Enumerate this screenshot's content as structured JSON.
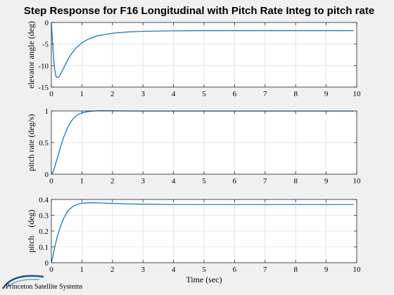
{
  "figure": {
    "title": "Step Response for F16 Longitudinal with Pitch Rate Integ to pitch rate",
    "logo_text": "Princeton Satellite Systems",
    "background": "#f0f0f0",
    "line_color": "#0072bd"
  },
  "chart_data": [
    {
      "type": "line",
      "ylabel": "elevator angle (deg)",
      "xlabel": "",
      "xlim": [
        0,
        10
      ],
      "ylim": [
        -15,
        0
      ],
      "xticks": [
        0,
        1,
        2,
        3,
        4,
        5,
        6,
        7,
        8,
        9,
        10
      ],
      "yticks": [
        -15,
        -10,
        -5,
        0
      ],
      "grid": true,
      "series": [
        {
          "x": [
            0,
            0.05,
            0.1,
            0.15,
            0.2,
            0.25,
            0.3,
            0.4,
            0.5,
            0.6,
            0.7,
            0.8,
            1.0,
            1.2,
            1.5,
            2.0,
            2.5,
            3.0,
            4.0,
            5.0,
            6.0,
            7.0,
            8.0,
            9.0,
            9.9
          ],
          "y": [
            0,
            -6,
            -10.5,
            -12.5,
            -12.8,
            -12.6,
            -12.0,
            -10.6,
            -9.2,
            -7.9,
            -6.9,
            -6.0,
            -4.7,
            -3.9,
            -3.1,
            -2.5,
            -2.2,
            -2.05,
            -1.95,
            -1.9,
            -1.9,
            -1.9,
            -1.9,
            -1.9,
            -1.9
          ]
        }
      ]
    },
    {
      "type": "line",
      "ylabel": "pitch rate (deg/s)",
      "xlabel": "",
      "xlim": [
        0,
        10
      ],
      "ylim": [
        0,
        1
      ],
      "xticks": [
        0,
        1,
        2,
        3,
        4,
        5,
        6,
        7,
        8,
        9,
        10
      ],
      "yticks": [
        0,
        0.5,
        1
      ],
      "grid": true,
      "series": [
        {
          "x": [
            0,
            0.05,
            0.1,
            0.2,
            0.3,
            0.4,
            0.5,
            0.6,
            0.7,
            0.8,
            0.9,
            1.0,
            1.2,
            1.4,
            1.6,
            1.8,
            2.0,
            2.5,
            3.0,
            4.0,
            5.0,
            6.0,
            7.0,
            8.0,
            9.0,
            9.9
          ],
          "y": [
            0,
            0.03,
            0.1,
            0.26,
            0.43,
            0.58,
            0.7,
            0.8,
            0.87,
            0.92,
            0.95,
            0.97,
            0.99,
            1.0,
            1.005,
            1.005,
            1.003,
            1.0,
            0.999,
            0.998,
            0.998,
            0.998,
            0.998,
            0.998,
            0.998,
            0.998
          ]
        }
      ]
    },
    {
      "type": "line",
      "ylabel": "pitch    (deg)",
      "xlabel": "Time (sec)",
      "xlim": [
        0,
        10
      ],
      "ylim": [
        0,
        0.4
      ],
      "xticks": [
        0,
        1,
        2,
        3,
        4,
        5,
        6,
        7,
        8,
        9,
        10
      ],
      "yticks": [
        0,
        0.1,
        0.2,
        0.3,
        0.4
      ],
      "grid": true,
      "series": [
        {
          "x": [
            0,
            0.05,
            0.1,
            0.2,
            0.3,
            0.4,
            0.5,
            0.6,
            0.7,
            0.8,
            0.9,
            1.0,
            1.2,
            1.4,
            1.6,
            2.0,
            2.5,
            3.0,
            4.0,
            5.0,
            6.0,
            7.0,
            8.0,
            9.0,
            9.9
          ],
          "y": [
            0,
            0.04,
            0.09,
            0.17,
            0.23,
            0.28,
            0.315,
            0.34,
            0.355,
            0.365,
            0.372,
            0.376,
            0.379,
            0.379,
            0.378,
            0.375,
            0.372,
            0.37,
            0.368,
            0.368,
            0.368,
            0.368,
            0.368,
            0.368,
            0.368
          ]
        }
      ]
    }
  ]
}
